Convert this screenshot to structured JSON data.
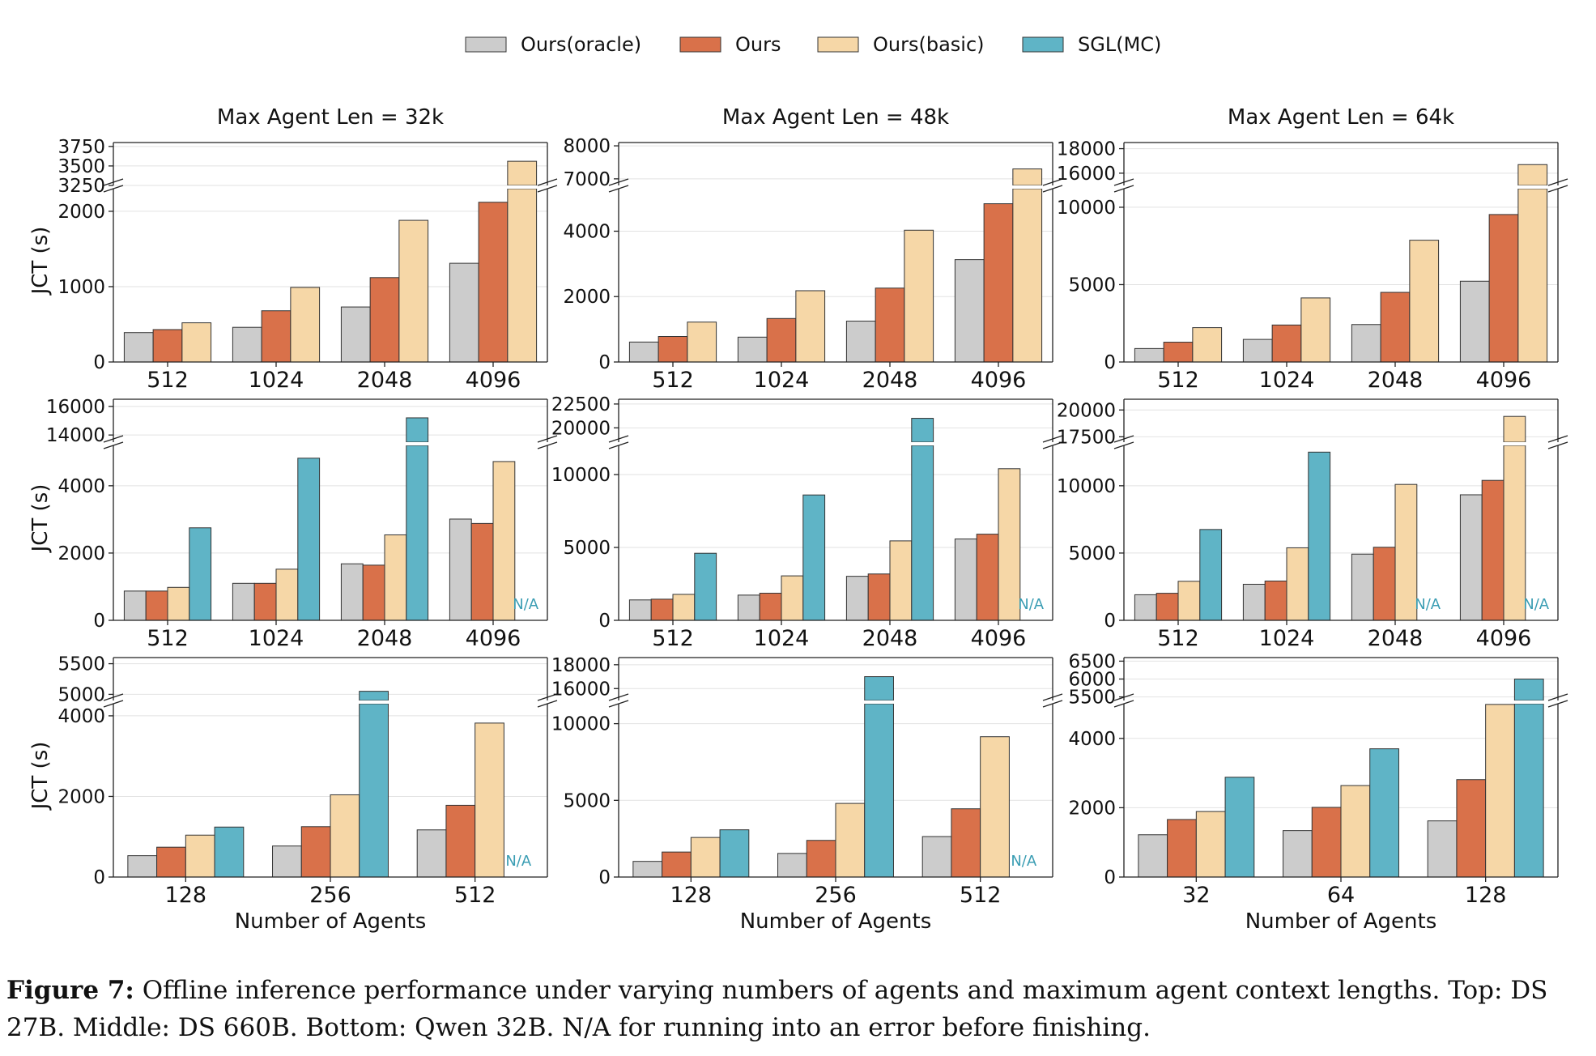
{
  "legend": [
    {
      "label": "Ours(oracle)",
      "color": "#cccccc"
    },
    {
      "label": "Ours",
      "color": "#d9714a"
    },
    {
      "label": "Ours(basic)",
      "color": "#f6d7a7"
    },
    {
      "label": "SGL(MC)",
      "color": "#5fb4c6"
    }
  ],
  "caption": {
    "label": "Figure 7:",
    "text": " Offline inference performance under varying numbers of agents and maximum agent context lengths. Top: DS 27B. Middle: DS 660B. Bottom: Qwen 32B. N/A for running into an error before finishing."
  },
  "chart_data": [
    {
      "type": "bar",
      "title": "Max Agent Len = 32k",
      "ylabel": "JCT (s)",
      "xlabel": "",
      "categories": [
        "512",
        "1024",
        "2048",
        "4096"
      ],
      "lower_ylim": [
        0,
        2300
      ],
      "upper_ylim": [
        3250,
        3800
      ],
      "lower_ticks": [
        0,
        1000,
        2000
      ],
      "upper_ticks": [
        3250,
        3500,
        3750
      ],
      "series": [
        {
          "name": "Ours(oracle)",
          "values": [
            390,
            460,
            730,
            1310
          ]
        },
        {
          "name": "Ours",
          "values": [
            430,
            680,
            1120,
            2120
          ]
        },
        {
          "name": "Ours(basic)",
          "values": [
            520,
            990,
            1880,
            3560
          ]
        }
      ],
      "na": []
    },
    {
      "type": "bar",
      "title": "Max Agent Len = 48k",
      "ylabel": "",
      "xlabel": "",
      "categories": [
        "512",
        "1024",
        "2048",
        "4096"
      ],
      "lower_ylim": [
        0,
        5300
      ],
      "upper_ylim": [
        6800,
        8100
      ],
      "lower_ticks": [
        0,
        2000,
        4000
      ],
      "upper_ticks": [
        7000,
        8000
      ],
      "series": [
        {
          "name": "Ours(oracle)",
          "values": [
            610,
            760,
            1250,
            3130
          ]
        },
        {
          "name": "Ours",
          "values": [
            780,
            1330,
            2260,
            4840
          ]
        },
        {
          "name": "Ours(basic)",
          "values": [
            1220,
            2180,
            4030,
            7300
          ]
        }
      ],
      "na": []
    },
    {
      "type": "bar",
      "title": "Max Agent Len = 64k",
      "ylabel": "",
      "xlabel": "",
      "categories": [
        "512",
        "1024",
        "2048",
        "4096"
      ],
      "lower_ylim": [
        0,
        11200
      ],
      "upper_ylim": [
        15000,
        18500
      ],
      "lower_ticks": [
        0,
        5000,
        10000
      ],
      "upper_ticks": [
        16000,
        18000
      ],
      "series": [
        {
          "name": "Ours(oracle)",
          "values": [
            870,
            1460,
            2420,
            5220
          ]
        },
        {
          "name": "Ours",
          "values": [
            1280,
            2390,
            4500,
            9530
          ]
        },
        {
          "name": "Ours(basic)",
          "values": [
            2220,
            4140,
            7870,
            16700
          ]
        }
      ],
      "na": []
    },
    {
      "type": "bar",
      "title": "",
      "ylabel": "JCT (s)",
      "xlabel": "",
      "categories": [
        "512",
        "1024",
        "2048",
        "4096"
      ],
      "lower_ylim": [
        0,
        5200
      ],
      "upper_ylim": [
        13500,
        16500
      ],
      "lower_ticks": [
        0,
        2000,
        4000
      ],
      "upper_ticks": [
        14000,
        16000
      ],
      "series": [
        {
          "name": "Ours(oracle)",
          "values": [
            870,
            1100,
            1680,
            3010
          ]
        },
        {
          "name": "Ours",
          "values": [
            870,
            1100,
            1640,
            2880
          ]
        },
        {
          "name": "Ours(basic)",
          "values": [
            980,
            1520,
            2540,
            4720
          ]
        },
        {
          "name": "SGL(MC)",
          "values": [
            2750,
            4820,
            15200,
            null
          ]
        }
      ],
      "na": [
        {
          "series": "SGL(MC)",
          "category": "4096",
          "label": "N/A"
        }
      ]
    },
    {
      "type": "bar",
      "title": "",
      "ylabel": "",
      "xlabel": "",
      "categories": [
        "512",
        "1024",
        "2048",
        "4096"
      ],
      "lower_ylim": [
        0,
        12000
      ],
      "upper_ylim": [
        18500,
        23000
      ],
      "lower_ticks": [
        0,
        5000,
        10000
      ],
      "upper_ticks": [
        20000,
        22500
      ],
      "series": [
        {
          "name": "Ours(oracle)",
          "values": [
            1400,
            1730,
            3020,
            5580
          ]
        },
        {
          "name": "Ours",
          "values": [
            1450,
            1860,
            3180,
            5910
          ]
        },
        {
          "name": "Ours(basic)",
          "values": [
            1780,
            3050,
            5450,
            10400
          ]
        },
        {
          "name": "SGL(MC)",
          "values": [
            4600,
            8600,
            21000,
            null
          ]
        }
      ],
      "na": [
        {
          "series": "SGL(MC)",
          "category": "4096",
          "label": "N/A"
        }
      ]
    },
    {
      "type": "bar",
      "title": "",
      "ylabel": "",
      "xlabel": "",
      "categories": [
        "512",
        "1024",
        "2048",
        "4096"
      ],
      "lower_ylim": [
        0,
        13000
      ],
      "upper_ylim": [
        17000,
        21000
      ],
      "lower_ticks": [
        0,
        5000,
        10000
      ],
      "upper_ticks": [
        17500,
        20000
      ],
      "series": [
        {
          "name": "Ours(oracle)",
          "values": [
            1900,
            2680,
            4920,
            9330
          ]
        },
        {
          "name": "Ours",
          "values": [
            2010,
            2920,
            5430,
            10400
          ]
        },
        {
          "name": "Ours(basic)",
          "values": [
            2900,
            5390,
            10100,
            19400
          ]
        },
        {
          "name": "SGL(MC)",
          "values": [
            6750,
            12500,
            null,
            null
          ]
        }
      ],
      "na": [
        {
          "series": "SGL(MC)",
          "category": "2048",
          "label": "N/A"
        },
        {
          "series": "SGL(MC)",
          "category": "4096",
          "label": "N/A"
        }
      ]
    },
    {
      "type": "bar",
      "title": "",
      "ylabel": "JCT (s)",
      "xlabel": "Number of Agents",
      "categories": [
        "128",
        "256",
        "512"
      ],
      "lower_ylim": [
        0,
        4300
      ],
      "upper_ylim": [
        4900,
        5600
      ],
      "lower_ticks": [
        0,
        2000,
        4000
      ],
      "upper_ticks": [
        5000,
        5500
      ],
      "series": [
        {
          "name": "Ours(oracle)",
          "values": [
            530,
            770,
            1170
          ]
        },
        {
          "name": "Ours",
          "values": [
            740,
            1250,
            1780
          ]
        },
        {
          "name": "Ours(basic)",
          "values": [
            1040,
            2040,
            3820
          ]
        },
        {
          "name": "SGL(MC)",
          "values": [
            1240,
            5050,
            null
          ]
        }
      ],
      "na": [
        {
          "series": "SGL(MC)",
          "category": "512",
          "label": "N/A"
        }
      ]
    },
    {
      "type": "bar",
      "title": "",
      "ylabel": "",
      "xlabel": "Number of Agents",
      "categories": [
        "128",
        "256",
        "512"
      ],
      "lower_ylim": [
        0,
        11300
      ],
      "upper_ylim": [
        15000,
        18600
      ],
      "lower_ticks": [
        0,
        5000,
        10000
      ],
      "upper_ticks": [
        16000,
        18000
      ],
      "series": [
        {
          "name": "Ours(oracle)",
          "values": [
            1020,
            1540,
            2640
          ]
        },
        {
          "name": "Ours",
          "values": [
            1630,
            2390,
            4450
          ]
        },
        {
          "name": "Ours(basic)",
          "values": [
            2580,
            4800,
            9150
          ]
        },
        {
          "name": "SGL(MC)",
          "values": [
            3080,
            17000,
            null
          ]
        }
      ],
      "na": [
        {
          "series": "SGL(MC)",
          "category": "512",
          "label": "N/A"
        }
      ]
    },
    {
      "type": "bar",
      "title": "",
      "ylabel": "",
      "xlabel": "Number of Agents",
      "categories": [
        "32",
        "64",
        "128"
      ],
      "lower_ylim": [
        0,
        5000
      ],
      "upper_ylim": [
        5400,
        6600
      ],
      "lower_ticks": [
        0,
        2000,
        4000
      ],
      "upper_ticks": [
        5500,
        6000,
        6500
      ],
      "series": [
        {
          "name": "Ours(oracle)",
          "values": [
            1220,
            1340,
            1620
          ]
        },
        {
          "name": "Ours",
          "values": [
            1660,
            2010,
            2810
          ]
        },
        {
          "name": "Ours(basic)",
          "values": [
            1890,
            2640,
            4980
          ]
        },
        {
          "name": "SGL(MC)",
          "values": [
            2880,
            3700,
            6000
          ]
        }
      ],
      "na": []
    }
  ]
}
